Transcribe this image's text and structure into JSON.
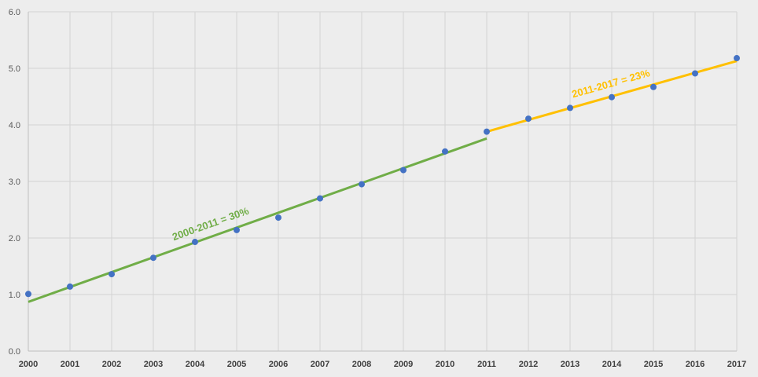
{
  "chart_data": {
    "type": "scatter",
    "title": "",
    "xlabel": "",
    "ylabel": "",
    "x": [
      2000,
      2001,
      2002,
      2003,
      2004,
      2005,
      2006,
      2007,
      2008,
      2009,
      2010,
      2011,
      2012,
      2013,
      2014,
      2015,
      2016,
      2017
    ],
    "series": [
      {
        "values": [
          1.01,
          1.14,
          1.36,
          1.65,
          1.93,
          2.14,
          2.36,
          2.7,
          2.95,
          3.2,
          3.53,
          3.88,
          4.11,
          4.3,
          4.49,
          4.67,
          4.91,
          5.18
        ],
        "color": "#4472c4"
      }
    ],
    "trendlines": [
      {
        "label": "2000-2011 = 30%",
        "x_range": [
          2000,
          2011
        ],
        "y_range": [
          0.87,
          3.76
        ],
        "color": "#70ad47"
      },
      {
        "label": "2011-2017 = 23%",
        "x_range": [
          2011,
          2017
        ],
        "y_range": [
          3.88,
          5.13
        ],
        "color": "#ffc000"
      }
    ],
    "xlim": [
      2000,
      2017
    ],
    "ylim": [
      0,
      6
    ],
    "yticks": [
      "0.0",
      "1.0",
      "2.0",
      "3.0",
      "4.0",
      "5.0",
      "6.0"
    ],
    "grid": true,
    "legend": "none"
  }
}
